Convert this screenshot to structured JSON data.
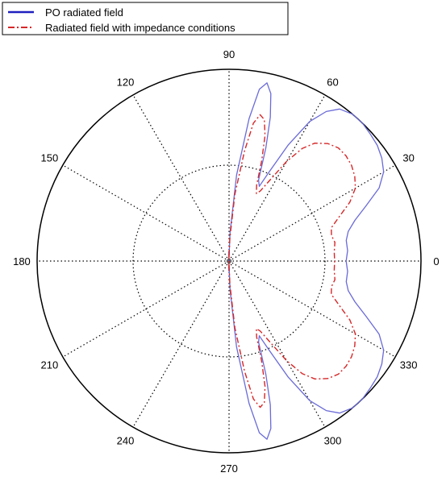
{
  "chart_data": {
    "type": "polar",
    "title": "",
    "angle_unit": "degrees",
    "angle_ticks": [
      0,
      30,
      60,
      90,
      120,
      150,
      180,
      210,
      240,
      270,
      300,
      330
    ],
    "angle_tick_labels": [
      "0",
      "30",
      "60",
      "90",
      "120",
      "150",
      "180",
      "210",
      "240",
      "270",
      "300",
      "330"
    ],
    "rlim": [
      0,
      1
    ],
    "radial_grid": [
      0.5,
      1.0
    ],
    "radial_tick_labels_shown": false,
    "grid": true,
    "legend_position": "top-left",
    "legend": [
      {
        "label": "PO radiated field",
        "color": "#1f1fbf",
        "style": "solid"
      },
      {
        "label": "Radiated field with impedance conditions",
        "color": "#d62728",
        "style": "dash-dot"
      }
    ],
    "series": [
      {
        "name": "PO radiated field",
        "color": "#6a6ad8",
        "style": "solid",
        "theta": [
          0,
          5,
          10,
          14,
          18,
          22,
          26,
          30,
          34,
          38,
          42,
          46,
          50,
          54,
          57,
          60,
          63,
          66,
          68,
          70,
          72,
          74,
          76,
          78,
          80,
          82,
          85,
          88,
          90,
          92,
          94
        ],
        "r": [
          0.61,
          0.62,
          0.62,
          0.64,
          0.69,
          0.77,
          0.87,
          0.93,
          0.96,
          0.98,
          0.99,
          1.0,
          1.0,
          0.98,
          0.93,
          0.84,
          0.68,
          0.5,
          0.42,
          0.45,
          0.62,
          0.78,
          0.9,
          0.95,
          0.91,
          0.75,
          0.45,
          0.15,
          0.02,
          0.05,
          0.0
        ]
      },
      {
        "name": "Radiated field with impedance conditions",
        "color": "#d62728",
        "style": "dash-dot",
        "theta": [
          0,
          5,
          10,
          14,
          18,
          22,
          26,
          30,
          34,
          38,
          42,
          46,
          50,
          54,
          57,
          60,
          63,
          66,
          68,
          70,
          72,
          74,
          76,
          78,
          80,
          82,
          85,
          88,
          90,
          92,
          94
        ],
        "r": [
          0.55,
          0.55,
          0.56,
          0.55,
          0.56,
          0.62,
          0.7,
          0.76,
          0.79,
          0.81,
          0.82,
          0.82,
          0.8,
          0.76,
          0.7,
          0.6,
          0.48,
          0.4,
          0.38,
          0.42,
          0.55,
          0.68,
          0.76,
          0.78,
          0.73,
          0.58,
          0.35,
          0.12,
          0.02,
          0.04,
          0.0
        ]
      }
    ],
    "symmetric_about_zero": true
  }
}
